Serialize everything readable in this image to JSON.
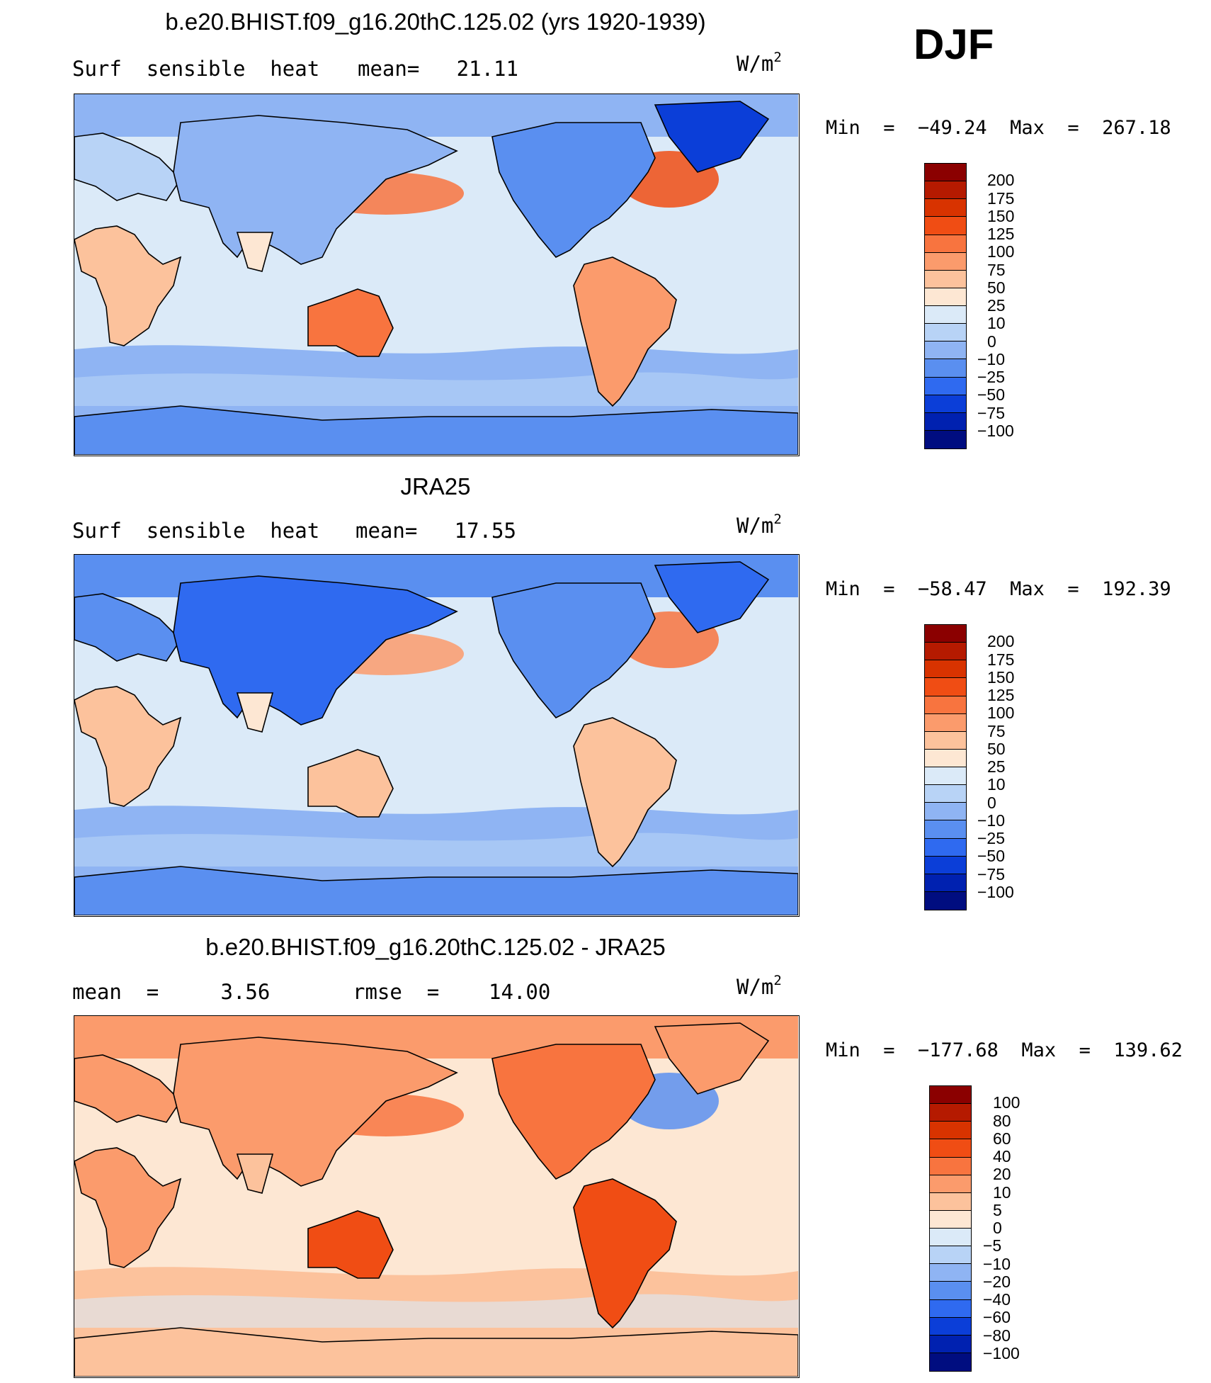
{
  "figure": {
    "season": "DJF",
    "panels": [
      {
        "title": "b.e20.BHIST.f09_g16.20thC.125.02 (yrs 1920-1939)",
        "left_label": "Surf  sensible  heat",
        "stat1": "mean=   21.11",
        "stat2": "",
        "units_base": "W/m",
        "units_exp": "2",
        "min_text": "Min  =  −49.24  Max  =  267.18",
        "colorbar": {
          "labels": [
            "200",
            "175",
            "150",
            "125",
            "100",
            "75",
            "50",
            "25",
            "10",
            "0",
            "−10",
            "−25",
            "−50",
            "−75",
            "−100"
          ],
          "colors": [
            "#8b0000",
            "#b51a00",
            "#d83300",
            "#f04d14",
            "#f8743f",
            "#fb9b6c",
            "#fcc29c",
            "#fde7d3",
            "#dbeaf8",
            "#b8d3f6",
            "#8fb4f3",
            "#5a8ff0",
            "#2f6af0",
            "#0b3ed8",
            "#0021b0",
            "#000d80"
          ]
        },
        "field": "model"
      },
      {
        "title": "JRA25",
        "left_label": "Surf  sensible  heat",
        "stat1": "mean=   17.55",
        "stat2": "",
        "units_base": "W/m",
        "units_exp": "2",
        "min_text": "Min  =  −58.47  Max  =  192.39",
        "colorbar": {
          "labels": [
            "200",
            "175",
            "150",
            "125",
            "100",
            "75",
            "50",
            "25",
            "10",
            "0",
            "−10",
            "−25",
            "−50",
            "−75",
            "−100"
          ],
          "colors": [
            "#8b0000",
            "#b51a00",
            "#d83300",
            "#f04d14",
            "#f8743f",
            "#fb9b6c",
            "#fcc29c",
            "#fde7d3",
            "#dbeaf8",
            "#b8d3f6",
            "#8fb4f3",
            "#5a8ff0",
            "#2f6af0",
            "#0b3ed8",
            "#0021b0",
            "#000d80"
          ]
        },
        "field": "obs"
      },
      {
        "title": "b.e20.BHIST.f09_g16.20thC.125.02 - JRA25",
        "left_label": "mean  =     3.56",
        "stat1": "rmse  =    14.00",
        "stat2": "",
        "units_base": "W/m",
        "units_exp": "2",
        "min_text": "Min  =  −177.68  Max  =  139.62",
        "colorbar": {
          "labels": [
            "100",
            "80",
            "60",
            "40",
            "20",
            "10",
            "5",
            "0",
            "−5",
            "−10",
            "−20",
            "−40",
            "−60",
            "−80",
            "−100"
          ],
          "colors": [
            "#8b0000",
            "#b51a00",
            "#d83300",
            "#f04d14",
            "#f8743f",
            "#fb9b6c",
            "#fcc29c",
            "#fde7d3",
            "#dbeaf8",
            "#b8d3f6",
            "#8fb4f3",
            "#5a8ff0",
            "#2f6af0",
            "#0b3ed8",
            "#0021b0",
            "#000d80"
          ]
        },
        "field": "diff"
      }
    ]
  }
}
